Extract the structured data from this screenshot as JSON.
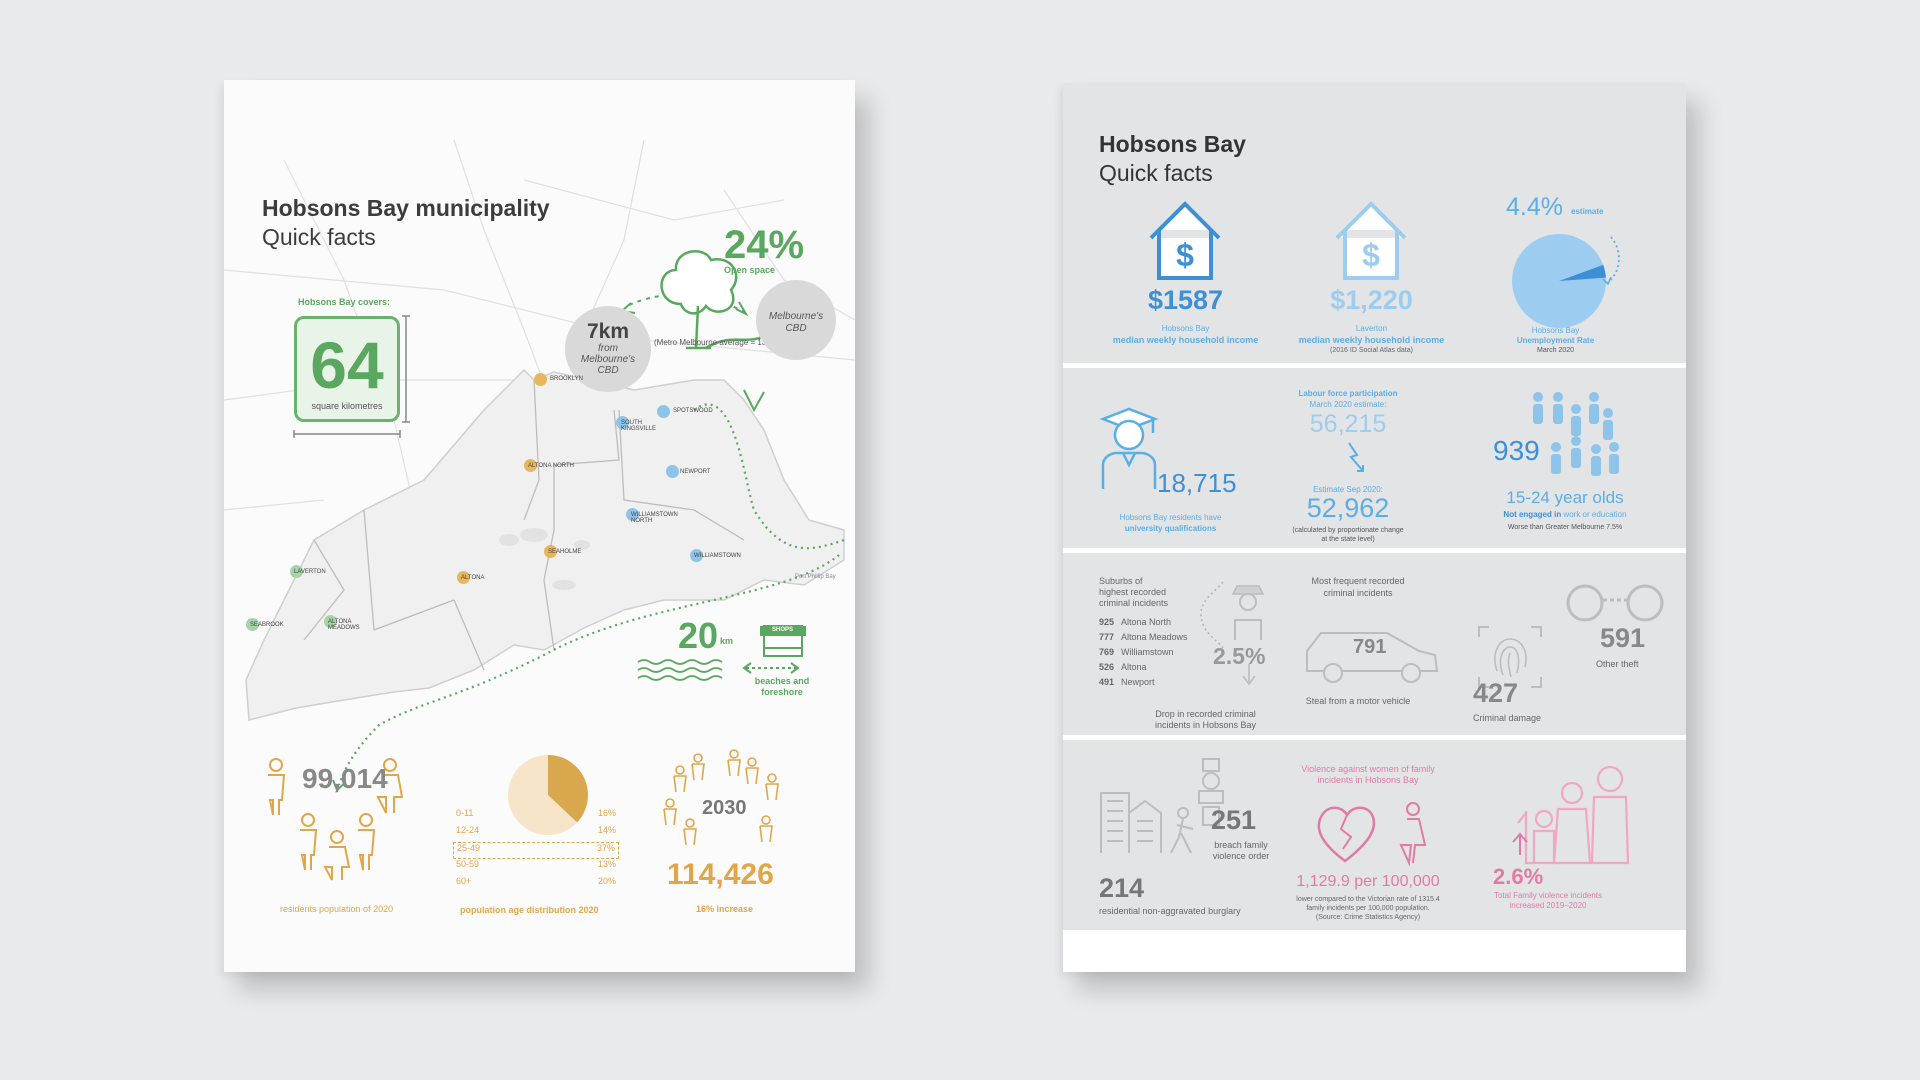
{
  "left": {
    "title": "Hobsons Bay municipality",
    "subtitle": "Quick facts",
    "open_space": {
      "value": "24%",
      "label": "Open space",
      "note": "(Metro Melbourne average = 13%)"
    },
    "area": {
      "intro": "Hobsons Bay covers:",
      "value": "64",
      "unit": "square kilometres"
    },
    "distance": {
      "value": "7km",
      "line1": "from",
      "line2": "Melbourne's",
      "line3": "CBD"
    },
    "cbd": {
      "line1": "Melbourne's",
      "line2": "CBD"
    },
    "suburbs": [
      "BROOKLYN",
      "SPOTSWOOD",
      "SOUTH KINGSVILLE",
      "ALTONA NORTH",
      "NEWPORT",
      "WILLIAMSTOWN NORTH",
      "SEAHOLME",
      "WILLIAMSTOWN",
      "LAVERTON",
      "ALTONA",
      "SEABROOK",
      "ALTONA MEADOWS"
    ],
    "bay": "Port Phillip Bay",
    "beaches": {
      "value": "20",
      "unit": "km",
      "shop": "SHOPS",
      "label1": "beaches and",
      "label2": "foreshore"
    },
    "population": {
      "value": "99,014",
      "label": "residents population of 2020"
    },
    "age": {
      "label": "population age distribution 2020",
      "groups": [
        {
          "range": "0-11",
          "pct": "16%"
        },
        {
          "range": "12-24",
          "pct": "14%"
        },
        {
          "range": "25-49",
          "pct": "37%"
        },
        {
          "range": "50-59",
          "pct": "13%"
        },
        {
          "range": "60+",
          "pct": "20%"
        }
      ],
      "highlight_fraction": 0.37
    },
    "forecast": {
      "year": "2030",
      "value": "114,426",
      "label": "16% increase"
    }
  },
  "right": {
    "title": "Hobsons Bay",
    "subtitle": "Quick facts",
    "income_hb": {
      "value": "$1587",
      "line1": "Hobsons Bay",
      "line2": "median weekly household income"
    },
    "income_lav": {
      "value": "$1,220",
      "line1": "Laverton",
      "line2": "median weekly household income",
      "note": "(2016 ID Social Atlas data)"
    },
    "unemployment": {
      "value": "4.4%",
      "estimate": "estimate",
      "line1": "Hobsons Bay",
      "line2": "Unemployment Rate",
      "date": "March 2020",
      "fraction": 0.044
    },
    "education": {
      "value": "18,715",
      "line1": "Hobsons Bay residents have",
      "line2": "university qualifications"
    },
    "labour": {
      "title1": "Labour force participation",
      "title2": "March 2020 estimate:",
      "value1": "56,215",
      "label2": "Estimate Sep 2020:",
      "value2": "52,962",
      "note1": "(calculated by proportionate change",
      "note2": "at the state level)"
    },
    "youth": {
      "value": "939",
      "label": "15-24 year olds",
      "line2_a": "Not engaged in ",
      "line2_b": "work or education",
      "line3": "Worse than Greater Melbourne 7.5%"
    },
    "crime": {
      "suburb_title": [
        "Suburbs of",
        "highest recorded",
        "criminal incidents"
      ],
      "suburbs": [
        {
          "n": "925",
          "name": "Altona North"
        },
        {
          "n": "777",
          "name": "Altona Meadows"
        },
        {
          "n": "769",
          "name": "Williamstown"
        },
        {
          "n": "526",
          "name": "Altona"
        },
        {
          "n": "491",
          "name": "Newport"
        }
      ],
      "drop": "2.5%",
      "drop_label1": "Drop in recorded criminal",
      "drop_label2": "incidents in Hobsons Bay",
      "frequent1": "Most frequent recorded",
      "frequent2": "criminal incidents",
      "vehicle": "791",
      "vehicle_label": "Steal from a motor vehicle",
      "damage": "427",
      "damage_label": "Criminal damage",
      "theft": "591",
      "theft_label": "Other theft"
    },
    "violence": {
      "breach": "251",
      "breach_label1": "breach family",
      "breach_label2": "violence order",
      "burglary": "214",
      "burglary_label": "residential non-aggravated burglary",
      "title1": "Violence against women of family",
      "title2": "incidents in Hobsons Bay",
      "rate": "1,129.9 per 100,000",
      "note1": "lower compared to the Victorian rate of 1315.4",
      "note2": "family incidents per 100,000 population.",
      "note3": "(Source: Crime Statistics Agency)",
      "increase": "2.6%",
      "increase_label1": "Total Family violence incidents",
      "increase_label2": "increased 2019–2020"
    }
  },
  "colors": {
    "green": "#5aa85f",
    "orange": "#e1a64a",
    "grey": "#8c8c8c",
    "blue": "#5aaee6",
    "pink": "#e27aa8",
    "background": "#e9eaec"
  }
}
